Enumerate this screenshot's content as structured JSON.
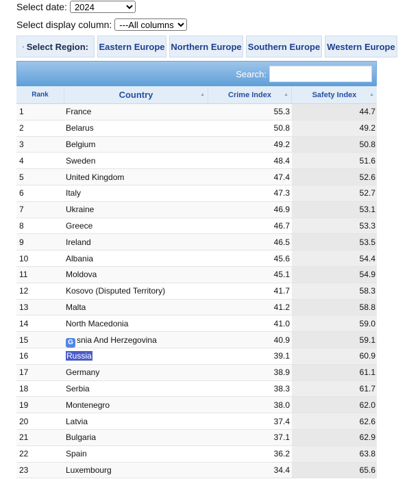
{
  "controls": {
    "date_label": "Select date:",
    "date_value": "2024",
    "column_label": "Select display column:",
    "column_value": "---All columns---"
  },
  "regions": {
    "label": "Select Region:",
    "items": [
      "Eastern Europe",
      "Northern Europe",
      "Southern Europe",
      "Western Europe"
    ]
  },
  "search": {
    "label": "Search:"
  },
  "table": {
    "headers": {
      "rank": "Rank",
      "country": "Country",
      "crime": "Crime Index",
      "safety": "Safety Index"
    },
    "rows": [
      {
        "rank": "1",
        "country": "France",
        "crime": "55.3",
        "safety": "44.7"
      },
      {
        "rank": "2",
        "country": "Belarus",
        "crime": "50.8",
        "safety": "49.2"
      },
      {
        "rank": "3",
        "country": "Belgium",
        "crime": "49.2",
        "safety": "50.8"
      },
      {
        "rank": "4",
        "country": "Sweden",
        "crime": "48.4",
        "safety": "51.6"
      },
      {
        "rank": "5",
        "country": "United Kingdom",
        "crime": "47.4",
        "safety": "52.6"
      },
      {
        "rank": "6",
        "country": "Italy",
        "crime": "47.3",
        "safety": "52.7"
      },
      {
        "rank": "7",
        "country": "Ukraine",
        "crime": "46.9",
        "safety": "53.1"
      },
      {
        "rank": "8",
        "country": "Greece",
        "crime": "46.7",
        "safety": "53.3"
      },
      {
        "rank": "9",
        "country": "Ireland",
        "crime": "46.5",
        "safety": "53.5"
      },
      {
        "rank": "10",
        "country": "Albania",
        "crime": "45.6",
        "safety": "54.4"
      },
      {
        "rank": "11",
        "country": "Moldova",
        "crime": "45.1",
        "safety": "54.9"
      },
      {
        "rank": "12",
        "country": "Kosovo (Disputed Territory)",
        "crime": "41.7",
        "safety": "58.3"
      },
      {
        "rank": "13",
        "country": "Malta",
        "crime": "41.2",
        "safety": "58.8"
      },
      {
        "rank": "14",
        "country": "North Macedonia",
        "crime": "41.0",
        "safety": "59.0"
      },
      {
        "rank": "15",
        "country": "snia And Herzegovina",
        "crime": "40.9",
        "safety": "59.1"
      },
      {
        "rank": "16",
        "country": "Russia",
        "crime": "39.1",
        "safety": "60.9"
      },
      {
        "rank": "17",
        "country": "Germany",
        "crime": "38.9",
        "safety": "61.1"
      },
      {
        "rank": "18",
        "country": "Serbia",
        "crime": "38.3",
        "safety": "61.7"
      },
      {
        "rank": "19",
        "country": "Montenegro",
        "crime": "38.0",
        "safety": "62.0"
      },
      {
        "rank": "20",
        "country": "Latvia",
        "crime": "37.4",
        "safety": "62.6"
      },
      {
        "rank": "21",
        "country": "Bulgaria",
        "crime": "37.1",
        "safety": "62.9"
      },
      {
        "rank": "22",
        "country": "Spain",
        "crime": "36.2",
        "safety": "63.8"
      },
      {
        "rank": "23",
        "country": "Luxembourg",
        "crime": "34.4",
        "safety": "65.6"
      }
    ]
  },
  "icons": {
    "region": "globe-icon",
    "translate": "google-translate-icon",
    "sort": "sort-arrow-icon"
  },
  "colors": {
    "accent": "#5f9fd8",
    "header_text": "#2350a0",
    "selection": "#4a5cc8",
    "region_bg": "#e6eef8"
  }
}
